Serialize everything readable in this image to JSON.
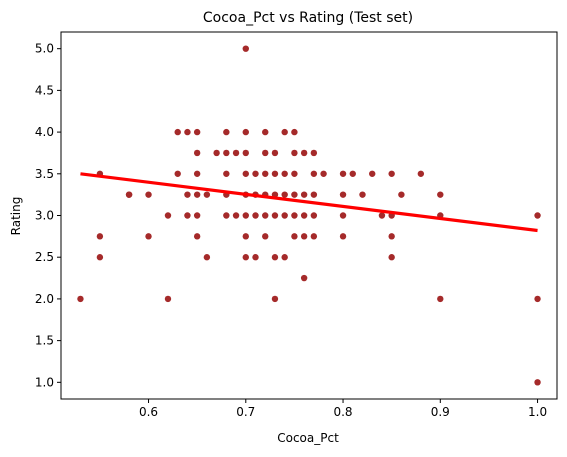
{
  "chart_data": {
    "type": "scatter",
    "title": "Cocoa_Pct vs Rating (Test set)",
    "xlabel": "Cocoa_Pct",
    "ylabel": "Rating",
    "xlim": [
      0.51,
      1.02
    ],
    "ylim": [
      0.8,
      5.2
    ],
    "xticks": [
      "0.6",
      "0.7",
      "0.8",
      "0.9",
      "1.0"
    ],
    "yticks": [
      "1.0",
      "1.5",
      "2.0",
      "2.5",
      "3.0",
      "3.5",
      "4.0",
      "4.5",
      "5.0"
    ],
    "grid": false,
    "point_color": "#a52a2a",
    "line_color": "#ff0000",
    "series": [
      {
        "type": "scatter",
        "points": [
          [
            0.53,
            2.0
          ],
          [
            0.55,
            3.5
          ],
          [
            0.55,
            2.75
          ],
          [
            0.55,
            2.5
          ],
          [
            0.58,
            3.25
          ],
          [
            0.58,
            3.25
          ],
          [
            0.6,
            3.25
          ],
          [
            0.6,
            2.75
          ],
          [
            0.62,
            3.0
          ],
          [
            0.62,
            2.0
          ],
          [
            0.63,
            4.0
          ],
          [
            0.63,
            3.5
          ],
          [
            0.64,
            4.0
          ],
          [
            0.64,
            3.25
          ],
          [
            0.64,
            3.0
          ],
          [
            0.65,
            4.0
          ],
          [
            0.65,
            3.75
          ],
          [
            0.65,
            3.5
          ],
          [
            0.65,
            3.25
          ],
          [
            0.65,
            3.0
          ],
          [
            0.65,
            2.75
          ],
          [
            0.66,
            3.25
          ],
          [
            0.66,
            2.5
          ],
          [
            0.67,
            3.75
          ],
          [
            0.68,
            4.0
          ],
          [
            0.68,
            3.75
          ],
          [
            0.68,
            3.5
          ],
          [
            0.68,
            3.25
          ],
          [
            0.68,
            3.0
          ],
          [
            0.69,
            3.75
          ],
          [
            0.69,
            3.0
          ],
          [
            0.7,
            5.0
          ],
          [
            0.7,
            4.0
          ],
          [
            0.7,
            3.75
          ],
          [
            0.7,
            3.5
          ],
          [
            0.7,
            3.25
          ],
          [
            0.7,
            3.0
          ],
          [
            0.7,
            2.75
          ],
          [
            0.7,
            2.5
          ],
          [
            0.71,
            3.5
          ],
          [
            0.71,
            3.25
          ],
          [
            0.71,
            3.0
          ],
          [
            0.71,
            2.5
          ],
          [
            0.72,
            4.0
          ],
          [
            0.72,
            3.75
          ],
          [
            0.72,
            3.5
          ],
          [
            0.72,
            3.25
          ],
          [
            0.72,
            3.0
          ],
          [
            0.72,
            2.75
          ],
          [
            0.73,
            3.75
          ],
          [
            0.73,
            3.5
          ],
          [
            0.73,
            3.25
          ],
          [
            0.73,
            3.0
          ],
          [
            0.73,
            2.5
          ],
          [
            0.73,
            2.0
          ],
          [
            0.74,
            4.0
          ],
          [
            0.74,
            3.5
          ],
          [
            0.74,
            3.25
          ],
          [
            0.74,
            3.0
          ],
          [
            0.74,
            2.5
          ],
          [
            0.75,
            4.0
          ],
          [
            0.75,
            3.75
          ],
          [
            0.75,
            3.5
          ],
          [
            0.75,
            3.25
          ],
          [
            0.75,
            3.0
          ],
          [
            0.75,
            2.75
          ],
          [
            0.76,
            3.75
          ],
          [
            0.76,
            3.25
          ],
          [
            0.76,
            3.0
          ],
          [
            0.76,
            2.75
          ],
          [
            0.76,
            2.25
          ],
          [
            0.77,
            3.75
          ],
          [
            0.77,
            3.5
          ],
          [
            0.77,
            3.25
          ],
          [
            0.77,
            3.0
          ],
          [
            0.77,
            2.75
          ],
          [
            0.78,
            3.5
          ],
          [
            0.8,
            3.5
          ],
          [
            0.8,
            3.25
          ],
          [
            0.8,
            3.0
          ],
          [
            0.8,
            2.75
          ],
          [
            0.81,
            3.5
          ],
          [
            0.82,
            3.25
          ],
          [
            0.83,
            3.5
          ],
          [
            0.84,
            3.0
          ],
          [
            0.85,
            3.5
          ],
          [
            0.85,
            3.0
          ],
          [
            0.85,
            2.75
          ],
          [
            0.85,
            2.5
          ],
          [
            0.86,
            3.25
          ],
          [
            0.88,
            3.5
          ],
          [
            0.9,
            3.25
          ],
          [
            0.9,
            3.0
          ],
          [
            0.9,
            2.0
          ],
          [
            1.0,
            3.0
          ],
          [
            1.0,
            2.0
          ],
          [
            1.0,
            1.0
          ]
        ]
      },
      {
        "type": "line",
        "points": [
          [
            0.53,
            3.5
          ],
          [
            1.0,
            2.82
          ]
        ]
      }
    ]
  }
}
